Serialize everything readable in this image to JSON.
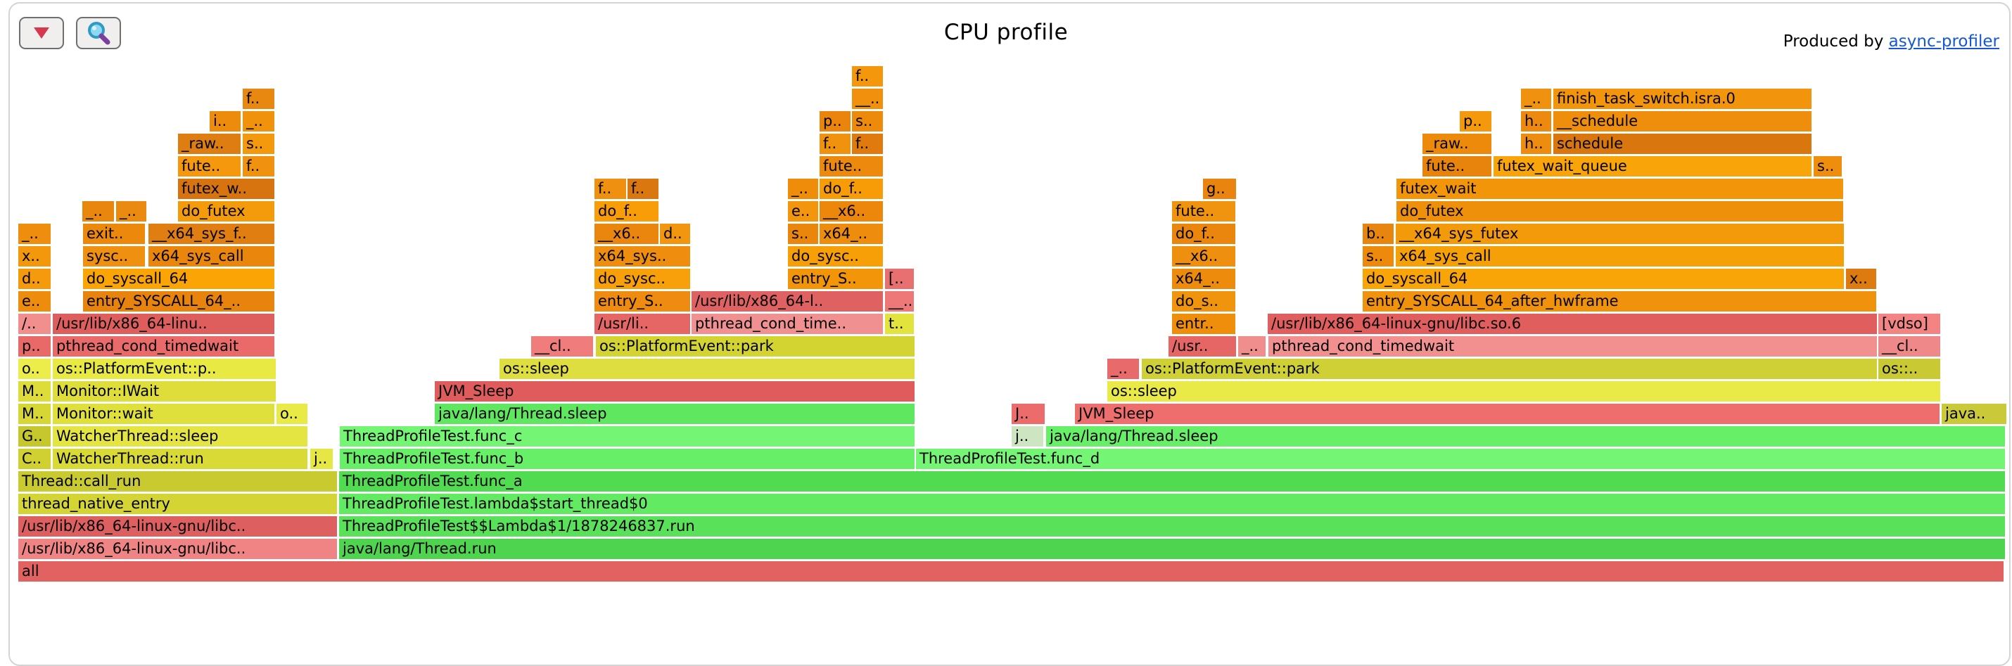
{
  "header": {
    "title": "CPU profile",
    "produced_by_text": "Produced by ",
    "produced_by_link": "async-profiler",
    "collapse_button_icon": "down-triangle",
    "search_button_icon": "magnifying-glass"
  },
  "colors": {
    "link": "#1558d6",
    "button_border": "#6f6f6f",
    "button_background": "#f1efed",
    "collapse_triangle": "#d6394f",
    "frame_text": "#000000",
    "kernel_orange": "#ef8d0e",
    "native_red": "#e06363",
    "cpp_yellow": "#dede3c",
    "java_green": "#5fe85f"
  },
  "flame": {
    "note": "frames format: [row, x1, x2, label, color]; row 0 = top, y = 94 + row*32",
    "frames": [
      [
        1,
        345,
        390,
        "f..",
        "#e98810"
      ],
      [
        2,
        298,
        342,
        "i..",
        "#ed8b0d"
      ],
      [
        2,
        345,
        390,
        "_..",
        "#f0920c"
      ],
      [
        3,
        253,
        342,
        "_raw..",
        "#de7d12"
      ],
      [
        3,
        345,
        390,
        "s..",
        "#f4990d"
      ],
      [
        4,
        253,
        342,
        "fute..",
        "#f5980e"
      ],
      [
        4,
        345,
        390,
        "f..",
        "#f09110"
      ],
      [
        5,
        253,
        390,
        "futex_w..",
        "#d8740f"
      ],
      [
        6,
        117,
        162,
        "_..",
        "#e8860d"
      ],
      [
        6,
        165,
        208,
        "_..",
        "#ea8a10"
      ],
      [
        6,
        253,
        390,
        "do_futex",
        "#f39b0b"
      ],
      [
        7,
        26,
        72,
        "_..",
        "#ef8d0e"
      ],
      [
        7,
        118,
        206,
        "exit..",
        "#ec880b"
      ],
      [
        7,
        211,
        390,
        "__x64_sys_f..",
        "#e17e12"
      ],
      [
        8,
        26,
        72,
        "x..",
        "#f3970c"
      ],
      [
        8,
        118,
        206,
        "sysc..",
        "#f09010"
      ],
      [
        8,
        211,
        390,
        "x64_sys_call",
        "#ea860b"
      ],
      [
        9,
        26,
        72,
        "d..",
        "#f59a0c"
      ],
      [
        9,
        118,
        390,
        "do_syscall_64",
        "#fba406"
      ],
      [
        10,
        26,
        72,
        "e..",
        "#ee8c0d"
      ],
      [
        10,
        118,
        390,
        "entry_SYSCALL_64_..",
        "#e8830e"
      ],
      [
        11,
        26,
        72,
        "/..",
        "#f18f8f"
      ],
      [
        11,
        75,
        390,
        "/usr/lib/x86_64-linu..",
        "#de5d5d"
      ],
      [
        12,
        26,
        72,
        "p..",
        "#e96868"
      ],
      [
        12,
        75,
        390,
        "pthread_cond_timedwait",
        "#ea6a6a"
      ],
      [
        13,
        26,
        72,
        "o..",
        "#ecec4a"
      ],
      [
        13,
        75,
        392,
        "os::PlatformEvent::p..",
        "#e9e944"
      ],
      [
        14,
        26,
        72,
        "M..",
        "#dddc38"
      ],
      [
        14,
        75,
        392,
        "Monitor::IWait",
        "#dedd3a"
      ],
      [
        15,
        26,
        72,
        "M..",
        "#d6d634"
      ],
      [
        15,
        75,
        390,
        "Monitor::wait",
        "#e0e03c"
      ],
      [
        15,
        393,
        437,
        "o..",
        "#eaea46"
      ],
      [
        16,
        26,
        72,
        "G..",
        "#c6c62e"
      ],
      [
        16,
        75,
        437,
        "WatcherThread::sleep",
        "#e4e442"
      ],
      [
        17,
        26,
        72,
        "C..",
        "#d0d032"
      ],
      [
        17,
        75,
        437,
        "WatcherThread::run",
        "#dada36"
      ],
      [
        17,
        441,
        473,
        "j..",
        "#e6e644"
      ],
      [
        18,
        26,
        479,
        "Thread::call_run",
        "#c9c930"
      ],
      [
        19,
        26,
        479,
        "thread_native_entry",
        "#d4d434"
      ],
      [
        20,
        26,
        479,
        "/usr/lib/x86_64-linux-gnu/libc..",
        "#dd5f5f"
      ],
      [
        21,
        26,
        479,
        "/usr/lib/x86_64-linux-gnu/libc..",
        "#f08484"
      ],
      [
        22,
        26,
        2848,
        "all",
        "#e26262"
      ],
      [
        0,
        1211,
        1255,
        "f..",
        "#f4970c"
      ],
      [
        1,
        1211,
        1255,
        "__..",
        "#f0900d"
      ],
      [
        2,
        1165,
        1209,
        "p..",
        "#ea840c"
      ],
      [
        2,
        1211,
        1255,
        "s..",
        "#ed8a0b"
      ],
      [
        3,
        1165,
        1209,
        "f..",
        "#f1920e"
      ],
      [
        3,
        1211,
        1255,
        "f..",
        "#e0790e"
      ],
      [
        4,
        1165,
        1255,
        "fute..",
        "#ed8a0e"
      ],
      [
        5,
        845,
        890,
        "f..",
        "#f09010"
      ],
      [
        5,
        892,
        936,
        "f..",
        "#db770f"
      ],
      [
        5,
        1120,
        1163,
        "_..",
        "#ef8d0b"
      ],
      [
        5,
        1165,
        1255,
        "do_f..",
        "#f79c07"
      ],
      [
        6,
        845,
        936,
        "do_f..",
        "#f89d08"
      ],
      [
        6,
        1120,
        1163,
        "e..",
        "#f3950d"
      ],
      [
        6,
        1165,
        1255,
        "__x6..",
        "#ec870c"
      ],
      [
        7,
        845,
        936,
        "__x6..",
        "#ea850d"
      ],
      [
        7,
        938,
        981,
        "d..",
        "#f2960f"
      ],
      [
        7,
        1120,
        1163,
        "s..",
        "#ea860c"
      ],
      [
        7,
        1165,
        1255,
        "x64_..",
        "#ee8c0d"
      ],
      [
        8,
        845,
        981,
        "x64_sys..",
        "#ef8d0e"
      ],
      [
        8,
        1120,
        1255,
        "do_sysc..",
        "#f79f07"
      ],
      [
        9,
        845,
        981,
        "do_sysc..",
        "#f8a00a"
      ],
      [
        9,
        1120,
        1255,
        "entry_S..",
        "#f29509"
      ],
      [
        9,
        1258,
        1299,
        "[..",
        "#e97070"
      ],
      [
        10,
        845,
        981,
        "entry_S..",
        "#ee8b10"
      ],
      [
        10,
        983,
        1255,
        "/usr/lib/x86_64-l..",
        "#e06161"
      ],
      [
        10,
        1258,
        1299,
        "__..",
        "#ee7777"
      ],
      [
        11,
        845,
        981,
        "/usr/li..",
        "#e66565"
      ],
      [
        11,
        983,
        1255,
        "pthread_cond_time..",
        "#f19090"
      ],
      [
        11,
        1258,
        1299,
        "t..",
        "#e3e33e"
      ],
      [
        12,
        755,
        843,
        "__cl..",
        "#f07c7c"
      ],
      [
        12,
        847,
        1300,
        "os::PlatformEvent::park",
        "#d3d332"
      ],
      [
        13,
        710,
        1300,
        "os::sleep",
        "#dede40"
      ],
      [
        14,
        618,
        1300,
        "JVM_Sleep",
        "#e05c5c"
      ],
      [
        15,
        618,
        1300,
        "java/lang/Thread.sleep",
        "#5fe85f"
      ],
      [
        16,
        483,
        1300,
        "ThreadProfileTest.func_c",
        "#74f574"
      ],
      [
        17,
        483,
        1300,
        "ThreadProfileTest.func_b",
        "#68ef68"
      ],
      [
        18,
        482,
        2850,
        "ThreadProfileTest.func_a",
        "#50db50"
      ],
      [
        19,
        482,
        2850,
        "ThreadProfileTest.lambda$start_thread$0",
        "#62ea62"
      ],
      [
        20,
        482,
        2850,
        "ThreadProfileTest$$Lambda$1/1878246837.run",
        "#59e259"
      ],
      [
        21,
        482,
        2850,
        "java/lang/Thread.run",
        "#4ed44e"
      ],
      [
        1,
        2162,
        2205,
        "_..",
        "#f09110"
      ],
      [
        1,
        2208,
        2575,
        "finish_task_switch.isra.0",
        "#f2940c"
      ],
      [
        2,
        2075,
        2120,
        "p..",
        "#f4990e"
      ],
      [
        2,
        2162,
        2205,
        "h..",
        "#ec890e"
      ],
      [
        2,
        2208,
        2575,
        "__schedule",
        "#ef8e0c"
      ],
      [
        3,
        2022,
        2120,
        "_raw..",
        "#ed8a0b"
      ],
      [
        3,
        2162,
        2205,
        "h..",
        "#ee8c10"
      ],
      [
        3,
        2208,
        2575,
        "schedule",
        "#d9760e"
      ],
      [
        4,
        2022,
        2120,
        "fute..",
        "#e8830c"
      ],
      [
        4,
        2123,
        2575,
        "futex_wait_queue",
        "#f9a509"
      ],
      [
        4,
        2578,
        2618,
        "s..",
        "#ef8d0d"
      ],
      [
        5,
        1710,
        1757,
        "g..",
        "#e9850f"
      ],
      [
        5,
        1985,
        2620,
        "futex_wait",
        "#f29509"
      ],
      [
        6,
        1666,
        1756,
        "fute..",
        "#f0930e"
      ],
      [
        6,
        1985,
        2620,
        "do_futex",
        "#ef900b"
      ],
      [
        7,
        1666,
        1756,
        "do_f..",
        "#ea860d"
      ],
      [
        7,
        1937,
        1981,
        "b..",
        "#e8850e"
      ],
      [
        7,
        1984,
        2621,
        "__x64_sys_futex",
        "#f39a0a"
      ],
      [
        8,
        1666,
        1756,
        "__x6..",
        "#ef8f10"
      ],
      [
        8,
        1937,
        1981,
        "s..",
        "#ed8a0c"
      ],
      [
        8,
        1984,
        2621,
        "x64_sys_call",
        "#f6a008"
      ],
      [
        9,
        1666,
        1756,
        "x64_..",
        "#ed8b0c"
      ],
      [
        9,
        1937,
        2621,
        "do_syscall_64",
        "#faa507"
      ],
      [
        9,
        2624,
        2667,
        "x..",
        "#dd7b10"
      ],
      [
        10,
        1666,
        1756,
        "do_s..",
        "#f1940d"
      ],
      [
        10,
        1937,
        2667,
        "entry_SYSCALL_64_after_hwframe",
        "#f0920b"
      ],
      [
        11,
        1666,
        1756,
        "entr..",
        "#ee8e0b"
      ],
      [
        11,
        1802,
        2668,
        "/usr/lib/x86_64-linux-gnu/libc.so.6",
        "#e05e5e"
      ],
      [
        11,
        2670,
        2758,
        "[vdso]",
        "#f48484"
      ],
      [
        12,
        1661,
        1757,
        "/usr..",
        "#e66666"
      ],
      [
        12,
        1760,
        1799,
        "_..",
        "#f08e8e"
      ],
      [
        12,
        1803,
        2668,
        "pthread_cond_timedwait",
        "#f29090"
      ],
      [
        12,
        2670,
        2758,
        "__cl..",
        "#ef8888"
      ],
      [
        13,
        1574,
        1619,
        "_..",
        "#e96a6a"
      ],
      [
        13,
        1623,
        2668,
        "os::PlatformEvent::park",
        "#cfcf36"
      ],
      [
        13,
        2670,
        2758,
        "os::..",
        "#c9c934"
      ],
      [
        14,
        1574,
        2758,
        "os::sleep",
        "#e9e948"
      ],
      [
        15,
        1438,
        1485,
        "J..",
        "#ec6c6c"
      ],
      [
        15,
        1528,
        2757,
        "JVM_Sleep",
        "#ee6e6e"
      ],
      [
        15,
        2760,
        2852,
        "java..",
        "#c9c939"
      ],
      [
        16,
        1438,
        1483,
        "j..",
        "#cde5c0"
      ],
      [
        16,
        1487,
        2850,
        "java/lang/Thread.sleep",
        "#68ef68"
      ],
      [
        17,
        1302,
        2850,
        "ThreadProfileTest.func_d",
        "#74f674"
      ]
    ]
  }
}
